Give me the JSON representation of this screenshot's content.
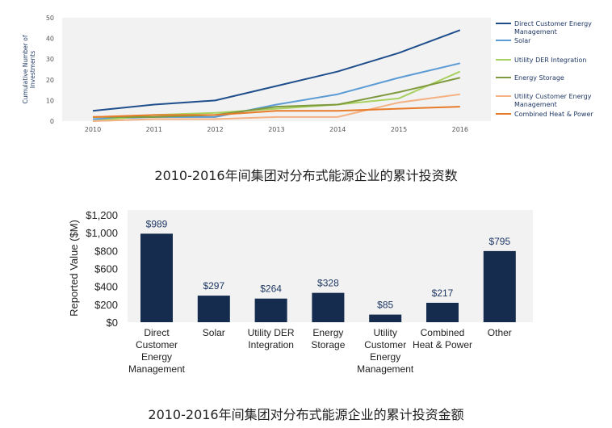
{
  "captions": {
    "top": "2010-2016年间集团对分布式能源企业的累计投资数",
    "bottom": "2010-2016年间集团对分布式能源企业的累计投资金额"
  },
  "chart_data": [
    {
      "type": "line",
      "ylabel": "Cumulative Number of Investments",
      "x": [
        "2010",
        "2011",
        "2012",
        "2013",
        "2014",
        "2015",
        "2016"
      ],
      "ylim": [
        0,
        50
      ],
      "yticks": [
        "0",
        "10",
        "20",
        "30",
        "40",
        "50"
      ],
      "grid": false,
      "legend_position": "right",
      "series": [
        {
          "name": "Direct Customer Energy Management",
          "color": "#1f4e8c",
          "values": [
            5,
            8,
            10,
            17,
            24,
            33,
            44
          ]
        },
        {
          "name": "Solar",
          "color": "#5b9bd5",
          "values": [
            1,
            2,
            2,
            8,
            13,
            21,
            28
          ]
        },
        {
          "name": "Utility DER Integration",
          "color": "#a9d15f",
          "values": [
            0,
            3,
            4,
            6,
            8,
            11,
            24
          ]
        },
        {
          "name": "Energy Storage",
          "color": "#7f9a3e",
          "values": [
            2,
            2,
            3,
            7,
            8,
            14,
            21
          ]
        },
        {
          "name": "Utility Customer Energy Management",
          "color": "#f4b183",
          "values": [
            0,
            1,
            1,
            2,
            2,
            9,
            13
          ]
        },
        {
          "name": "Combined Heat & Power",
          "color": "#e87b2a",
          "values": [
            2,
            3,
            3,
            5,
            5,
            6,
            7
          ]
        }
      ]
    },
    {
      "type": "bar",
      "ylabel": "Reported Value ($M)",
      "categories": [
        "Direct Customer Energy Management",
        "Solar",
        "Utility DER Integration",
        "Energy Storage",
        "Utility Customer Energy Management",
        "Combined Heat & Power",
        "Other"
      ],
      "category_lines": [
        [
          "Direct",
          "Customer",
          "Energy",
          "Management"
        ],
        [
          "Solar"
        ],
        [
          "Utility DER",
          "Integration"
        ],
        [
          "Energy",
          "Storage"
        ],
        [
          "Utility",
          "Customer",
          "Energy",
          "Management"
        ],
        [
          "Combined",
          "Heat & Power"
        ],
        [
          "Other"
        ]
      ],
      "values": [
        989,
        297,
        264,
        328,
        85,
        217,
        795
      ],
      "value_labels": [
        "$989",
        "$297",
        "$264",
        "$328",
        "$85",
        "$217",
        "$795"
      ],
      "ylim": [
        0,
        1200
      ],
      "yticks": [
        "$0",
        "$200",
        "$400",
        "$600",
        "$800",
        "$1,000",
        "$1,200"
      ],
      "color": "#152c4f",
      "grid": false
    }
  ]
}
